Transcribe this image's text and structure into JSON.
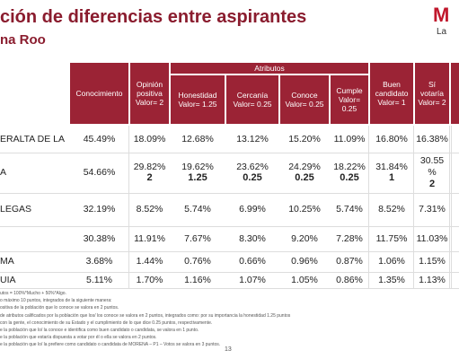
{
  "header": {
    "title": "ción de diferencias entre aspirantes",
    "subtitle": "na Roo",
    "logo": "M",
    "logo_sub": "La"
  },
  "table": {
    "group_header": "Atributos",
    "columns": [
      "Conocimiento",
      "Opinión positiva Valor= 2",
      "Honestidad Valor= 1.25",
      "Cercanía Valor= 0.25",
      "Conoce Valor= 0.25",
      "Cumple Valor= 0.25",
      "Buen candidato Valor= 1",
      "Sí votaría Valor= 2"
    ],
    "rows": [
      {
        "name": "ERALTA DE LA",
        "cells": [
          {
            "text": "45.49%"
          },
          {
            "text": "18.09%"
          },
          {
            "text": "12.68%"
          },
          {
            "text": "13.12%"
          },
          {
            "text": "15.20%"
          },
          {
            "text": "11.09%"
          },
          {
            "text": "16.80%"
          },
          {
            "text": "16.38%"
          }
        ]
      },
      {
        "name": "A",
        "cells": [
          {
            "text": "54.66%"
          },
          {
            "text": "29.82%",
            "score": "2"
          },
          {
            "text": "19.62%",
            "score": "1.25"
          },
          {
            "text": "23.62%",
            "score": "0.25"
          },
          {
            "text": "24.29%",
            "score": "0.25"
          },
          {
            "text": "18.22%",
            "score": "0.25"
          },
          {
            "text": "31.84%",
            "score": "1"
          },
          {
            "text": "30.55 %",
            "score": "2"
          }
        ]
      },
      {
        "name": "LEGAS",
        "cells": [
          {
            "text": "32.19%"
          },
          {
            "text": "8.52%"
          },
          {
            "text": "5.74%"
          },
          {
            "text": "6.99%"
          },
          {
            "text": "10.25%"
          },
          {
            "text": "5.74%"
          },
          {
            "text": "8.52%"
          },
          {
            "text": "7.31%"
          }
        ]
      },
      {
        "name": null,
        "cells": [
          {
            "text": "30.38%"
          },
          {
            "text": "11.91%"
          },
          {
            "text": "7.67%"
          },
          {
            "text": "8.30%"
          },
          {
            "text": "9.20%"
          },
          {
            "text": "7.28%"
          },
          {
            "text": "11.75%"
          },
          {
            "text": "11.03%"
          }
        ]
      },
      {
        "name": "MA",
        "cells": [
          {
            "text": "3.68%"
          },
          {
            "text": "1.44%"
          },
          {
            "text": "0.76%"
          },
          {
            "text": "0.66%"
          },
          {
            "text": "0.96%"
          },
          {
            "text": "0.87%"
          },
          {
            "text": "1.06%"
          },
          {
            "text": "1.15%"
          }
        ]
      },
      {
        "name": "UIA",
        "cells": [
          {
            "text": "5.11%"
          },
          {
            "text": "1.70%"
          },
          {
            "text": "1.16%"
          },
          {
            "text": "1.07%"
          },
          {
            "text": "1.05%"
          },
          {
            "text": "0.86%"
          },
          {
            "text": "1.35%"
          },
          {
            "text": "1.13%"
          }
        ]
      }
    ]
  },
  "footnotes": [
    "utos = 100%*Mucho + 50%*Algo.",
    "o máximo 10 puntos, integrados de la siguiente manera:",
    "ositiva de la población que lo conoce se valora en 2 puntos.",
    "de atributos calificados por la población que los/ los conoce se valora en 2 puntos, integrados como: por su importancia la honestidad 1.25 puntos",
    "con la gente, el conocimiento de su Estado y el cumplimiento de lo que dice 0.25 puntos, respectivamente.",
    "e la población que lo/ la conoce e identifica como buen candidato o candidata, se valora en 1 punto.",
    "e la población que estaría dispuesta a votar por él o ella se valora en 2 puntos.",
    "e la población que lo/ la prefiere como candidato o candidata de MORENA – P1 – Votos se valora en 3 puntos."
  ],
  "page_number": "13"
}
